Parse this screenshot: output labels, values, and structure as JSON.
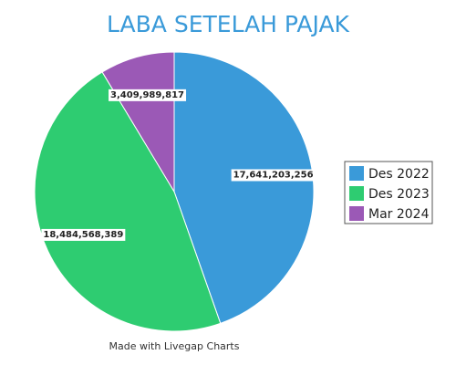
{
  "chart_data": {
    "type": "pie",
    "title": "LABA SETELAH PAJAK",
    "categories": [
      "Des 2022",
      "Des 2023",
      "Mar 2024"
    ],
    "values": [
      17641203256,
      18484568389,
      3409989817
    ],
    "value_labels": [
      "17,641,203,256",
      "18,484,568,389",
      "3,409,989,817"
    ],
    "colors": [
      "#3a9ad9",
      "#2ecc71",
      "#9b59b6"
    ],
    "legend": "right",
    "credit": "Made with Livegap Charts"
  }
}
